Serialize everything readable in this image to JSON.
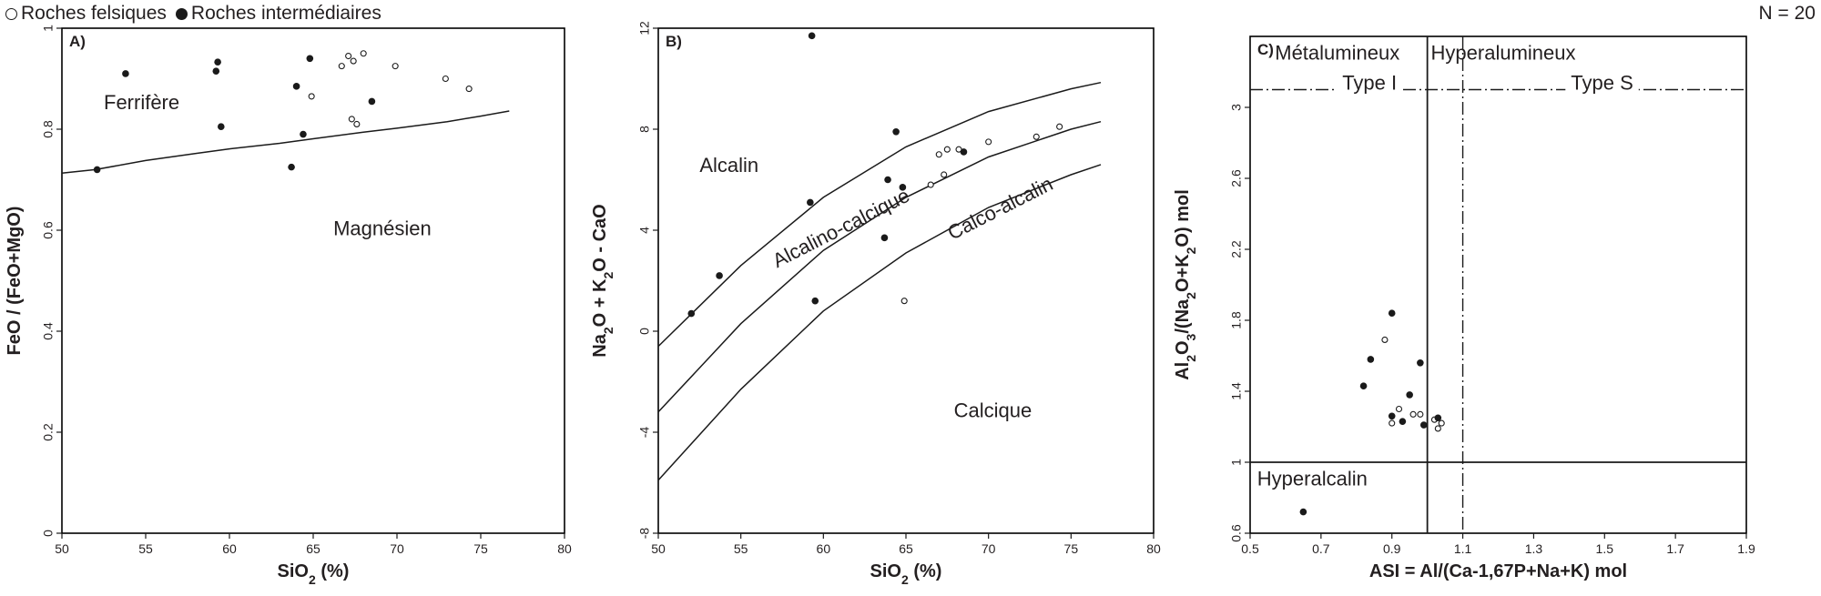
{
  "legend": {
    "open": "Roches felsiques",
    "filled": "Roches intermédiaires"
  },
  "count_label": "N = 20",
  "colors": {
    "ink": "#1a1a1a",
    "open_fill": "#ffffff"
  },
  "chart_data": [
    {
      "type": "scatter",
      "panel": "A)",
      "xlabel": "SiO2 (%)",
      "ylabel": "FeO / (FeO+MgO)",
      "xlim": [
        50,
        80
      ],
      "ylim": [
        0,
        1
      ],
      "xticks": [
        50,
        55,
        60,
        65,
        70,
        75,
        80
      ],
      "xtick_labels": [
        "50",
        "55",
        "60",
        "65",
        "70",
        "75",
        "80"
      ],
      "yticks": [
        0,
        0.2,
        0.4,
        0.6,
        0.8,
        1
      ],
      "ytick_labels": [
        "0",
        "0.2",
        "0.4",
        "0.6",
        "0.8",
        "1"
      ],
      "field_labels": [
        {
          "text": "Ferrifère",
          "x": 52.5,
          "y": 0.84
        },
        {
          "text": "Magnésien",
          "x": 66.2,
          "y": 0.59
        }
      ],
      "boundary_lines": [
        {
          "x": [
            50,
            52,
            55,
            58,
            60,
            63,
            65,
            68,
            70,
            73,
            75,
            76.7
          ],
          "y": [
            0.713,
            0.72,
            0.738,
            0.752,
            0.761,
            0.772,
            0.781,
            0.794,
            0.802,
            0.815,
            0.826,
            0.836
          ]
        }
      ],
      "series": [
        {
          "name": "Roches felsiques",
          "marker": "open",
          "points": [
            [
              64.9,
              0.865
            ],
            [
              66.7,
              0.925
            ],
            [
              67.1,
              0.945
            ],
            [
              67.4,
              0.935
            ],
            [
              68.0,
              0.95
            ],
            [
              69.9,
              0.925
            ],
            [
              72.9,
              0.9
            ],
            [
              74.3,
              0.88
            ],
            [
              67.3,
              0.82
            ],
            [
              67.6,
              0.81
            ]
          ]
        },
        {
          "name": "Roches intermédiaires",
          "marker": "filled",
          "points": [
            [
              52.1,
              0.72
            ],
            [
              53.8,
              0.91
            ],
            [
              59.2,
              0.915
            ],
            [
              59.3,
              0.933
            ],
            [
              59.5,
              0.805
            ],
            [
              63.7,
              0.725
            ],
            [
              64.0,
              0.885
            ],
            [
              64.4,
              0.79
            ],
            [
              64.8,
              0.94
            ],
            [
              68.5,
              0.855
            ]
          ]
        }
      ]
    },
    {
      "type": "scatter",
      "panel": "B)",
      "xlabel": "SiO2 (%)",
      "ylabel": "Na2O + K2O - CaO",
      "xlim": [
        50,
        80
      ],
      "ylim": [
        -8,
        12
      ],
      "xticks": [
        50,
        55,
        60,
        65,
        70,
        75,
        80
      ],
      "xtick_labels": [
        "50",
        "55",
        "60",
        "65",
        "70",
        "75",
        "80"
      ],
      "yticks": [
        -8,
        -4,
        0,
        4,
        8,
        12
      ],
      "ytick_labels": [
        "-8",
        "-4",
        "0",
        "4",
        "8",
        "12"
      ],
      "field_labels": [
        {
          "text": "Alcalin",
          "x": 52.5,
          "y": 6.3
        },
        {
          "text": "Alcalino-calcique",
          "x": 57.2,
          "y": 2.5,
          "angle": -27
        },
        {
          "text": "Calco-alcalin",
          "x": 67.8,
          "y": 3.6,
          "angle": -27
        },
        {
          "text": "Calcique",
          "x": 67.9,
          "y": -3.4
        }
      ],
      "boundary_lines": [
        {
          "x": [
            50,
            55,
            60,
            65,
            70,
            75,
            76.8
          ],
          "y": [
            -0.6,
            2.6,
            5.3,
            7.3,
            8.7,
            9.6,
            9.85
          ]
        },
        {
          "x": [
            50,
            55,
            60,
            65,
            70,
            75,
            76.8
          ],
          "y": [
            -3.2,
            0.3,
            3.2,
            5.3,
            6.9,
            8.0,
            8.3
          ]
        },
        {
          "x": [
            50,
            55,
            60,
            65,
            70,
            75,
            76.8
          ],
          "y": [
            -5.9,
            -2.3,
            0.8,
            3.1,
            4.9,
            6.2,
            6.6
          ]
        }
      ],
      "series": [
        {
          "name": "Roches felsiques",
          "marker": "open",
          "points": [
            [
              64.9,
              1.2
            ],
            [
              66.5,
              5.8
            ],
            [
              67.0,
              7.0
            ],
            [
              67.3,
              6.2
            ],
            [
              67.5,
              7.2
            ],
            [
              68.2,
              7.2
            ],
            [
              70.0,
              7.5
            ],
            [
              72.9,
              7.7
            ],
            [
              74.3,
              8.1
            ]
          ]
        },
        {
          "name": "Roches intermédiaires",
          "marker": "filled",
          "points": [
            [
              52.0,
              0.7
            ],
            [
              53.7,
              2.2
            ],
            [
              59.2,
              5.1
            ],
            [
              59.3,
              11.7
            ],
            [
              59.5,
              1.2
            ],
            [
              63.7,
              3.7
            ],
            [
              63.9,
              6.0
            ],
            [
              64.4,
              7.9
            ],
            [
              64.8,
              5.7
            ],
            [
              68.5,
              7.1
            ]
          ]
        }
      ]
    },
    {
      "type": "scatter",
      "panel": "C)",
      "xlabel": "ASI = Al/(Ca-1,67P+Na+K) mol",
      "ylabel": "Al2O3/(Na2O+K2O) mol",
      "xlim": [
        0.5,
        1.9
      ],
      "ylim": [
        0.6,
        3.4
      ],
      "xticks": [
        0.5,
        0.7,
        0.9,
        1.1,
        1.3,
        1.5,
        1.7,
        1.9
      ],
      "xtick_labels": [
        "0.5",
        "0.7",
        "0.9",
        "1.1",
        "1.3",
        "1.5",
        "1.7",
        "1.9"
      ],
      "yticks": [
        0.6,
        1,
        1.4,
        1.8,
        2.2,
        2.6,
        3
      ],
      "ytick_labels": [
        "0.6",
        "1",
        "1.4",
        "1.8",
        "2.2",
        "2.6",
        "3"
      ],
      "field_labels": [
        {
          "text": "Métalumineux",
          "x": 0.57,
          "y": 3.27
        },
        {
          "text": "Hyperalumineux",
          "x": 1.01,
          "y": 3.27
        },
        {
          "text": "Type I",
          "x": 0.76,
          "y": 3.1
        },
        {
          "text": "Type S",
          "x": 1.405,
          "y": 3.1
        },
        {
          "text": "Hyperalcalin",
          "x": 0.52,
          "y": 0.87
        }
      ],
      "reference_lines": [
        {
          "orientation": "vertical",
          "x": 1.0,
          "style": "solid"
        },
        {
          "orientation": "horizontal",
          "y": 1.0,
          "style": "solid"
        },
        {
          "orientation": "vertical",
          "x": 1.1,
          "style": "dashed"
        },
        {
          "orientation": "horizontal",
          "y": 3.1,
          "style": "dashed"
        }
      ],
      "series": [
        {
          "name": "Roches felsiques",
          "marker": "open",
          "points": [
            [
              0.88,
              1.69
            ],
            [
              0.9,
              1.22
            ],
            [
              0.92,
              1.3
            ],
            [
              0.96,
              1.27
            ],
            [
              0.98,
              1.27
            ],
            [
              1.02,
              1.24
            ],
            [
              1.03,
              1.19
            ],
            [
              1.04,
              1.22
            ]
          ]
        },
        {
          "name": "Roches intermédiaires",
          "marker": "filled",
          "points": [
            [
              0.65,
              0.72
            ],
            [
              0.82,
              1.43
            ],
            [
              0.84,
              1.58
            ],
            [
              0.9,
              1.84
            ],
            [
              0.9,
              1.26
            ],
            [
              0.93,
              1.23
            ],
            [
              0.95,
              1.38
            ],
            [
              0.98,
              1.56
            ],
            [
              0.99,
              1.21
            ],
            [
              1.03,
              1.25
            ]
          ]
        }
      ]
    }
  ]
}
